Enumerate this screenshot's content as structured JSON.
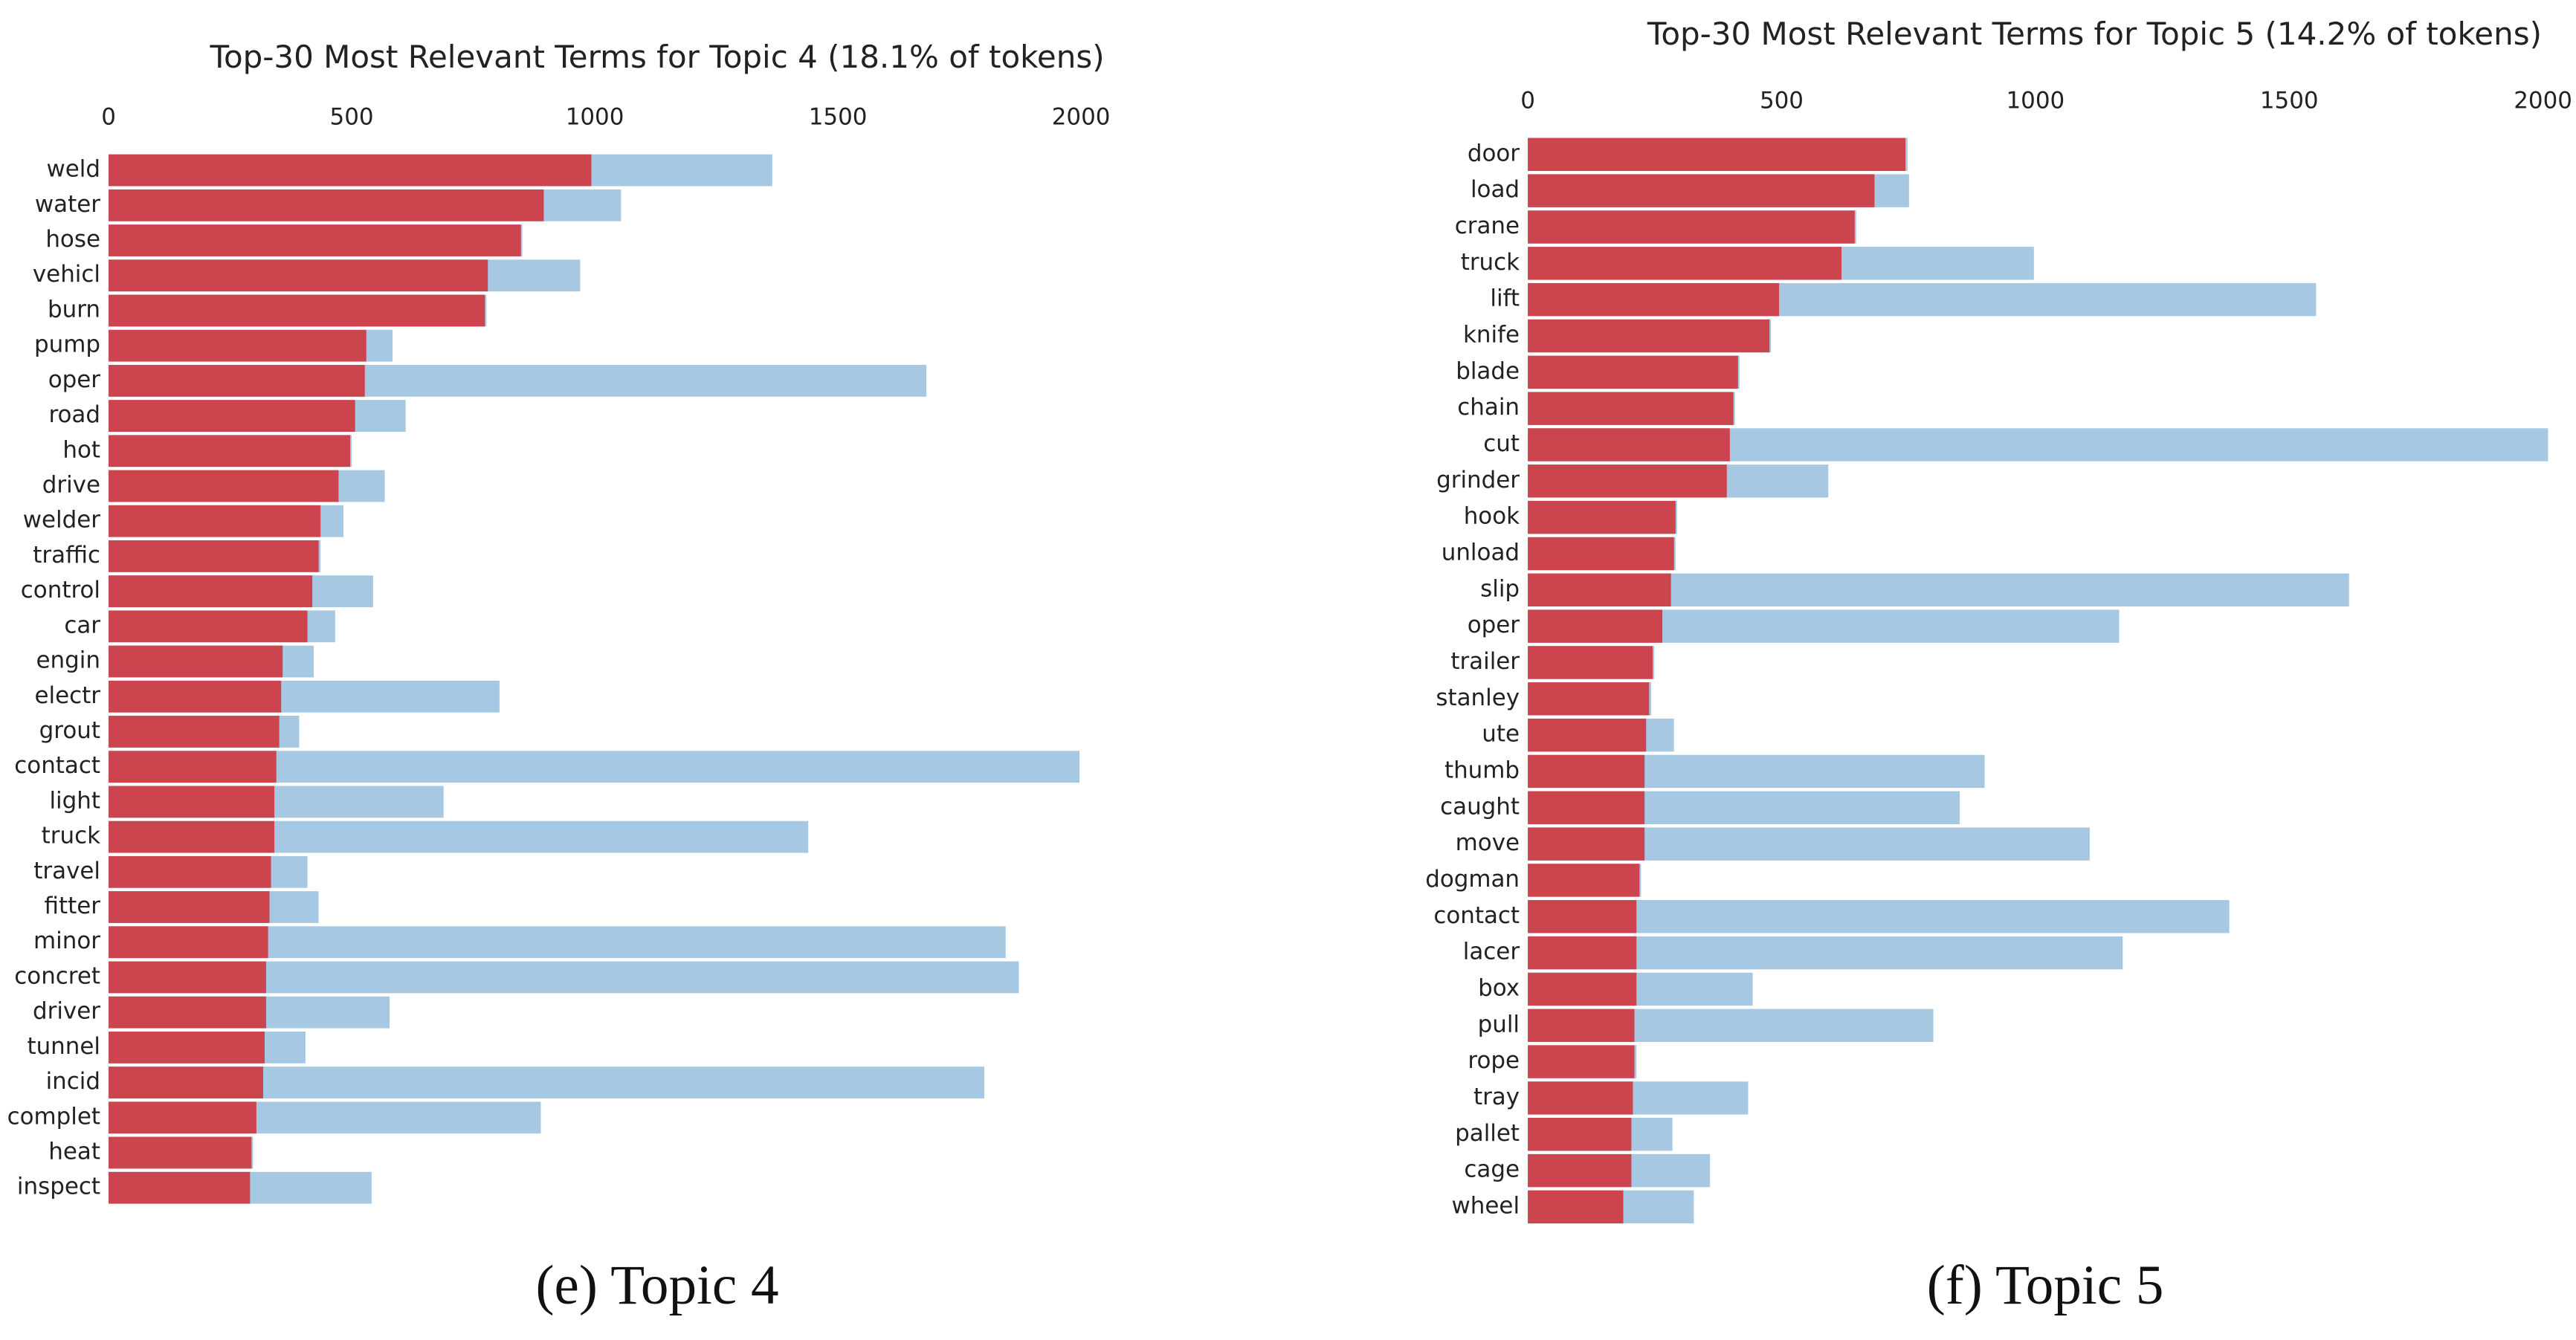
{
  "chart_data": [
    {
      "type": "bar",
      "orientation": "horizontal",
      "title": "Top-30 Most Relevant Terms for Topic 4 (18.1% of tokens)",
      "caption": "(e) Topic 4",
      "categories": [
        "weld",
        "water",
        "hose",
        "vehicl",
        "burn",
        "pump",
        "oper",
        "road",
        "hot",
        "drive",
        "welder",
        "traffic",
        "control",
        "car",
        "engin",
        "electr",
        "grout",
        "contact",
        "light",
        "truck",
        "travel",
        "fitter",
        "minor",
        "concret",
        "driver",
        "tunnel",
        "incid",
        "complet",
        "heat",
        "inspect"
      ],
      "series": [
        {
          "color": "#a6c8e2",
          "values": [
            1365,
            1054,
            851,
            970,
            777,
            584,
            1682,
            611,
            500,
            568,
            483,
            436,
            544,
            466,
            422,
            804,
            392,
            1997,
            689,
            1439,
            409,
            432,
            1845,
            1872,
            578,
            405,
            1801,
            889,
            297,
            541
          ]
        },
        {
          "color": "#cc444e",
          "values": [
            993,
            895,
            848,
            780,
            774,
            530,
            527,
            507,
            497,
            473,
            436,
            432,
            419,
            409,
            358,
            355,
            351,
            345,
            341,
            341,
            334,
            331,
            328,
            324,
            324,
            321,
            318,
            304,
            294,
            291
          ]
        }
      ],
      "xlim": [
        0,
        2000
      ],
      "xticks": [
        0,
        500,
        1000,
        1500,
        2000
      ]
    },
    {
      "type": "bar",
      "orientation": "horizontal",
      "title": "Top-30 Most Relevant Terms for Topic 5 (14.2% of tokens)",
      "caption": "(f) Topic 5",
      "categories": [
        "door",
        "load",
        "crane",
        "truck",
        "lift",
        "knife",
        "blade",
        "chain",
        "cut",
        "grinder",
        "hook",
        "unload",
        "slip",
        "oper",
        "trailer",
        "stanley",
        "ute",
        "thumb",
        "caught",
        "move",
        "dogman",
        "contact",
        "lacer",
        "box",
        "pull",
        "rope",
        "tray",
        "pallet",
        "cage",
        "wheel"
      ],
      "series": [
        {
          "color": "#a6c8e2",
          "values": [
            748,
            751,
            647,
            997,
            1553,
            479,
            417,
            408,
            2010,
            592,
            294,
            291,
            1618,
            1165,
            249,
            243,
            288,
            900,
            851,
            1107,
            223,
            1382,
            1172,
            443,
            799,
            214,
            434,
            285,
            359,
            327
          ]
        },
        {
          "color": "#cc444e",
          "values": [
            744,
            683,
            644,
            618,
            495,
            476,
            414,
            405,
            398,
            392,
            291,
            288,
            282,
            265,
            246,
            239,
            233,
            230,
            230,
            230,
            220,
            214,
            214,
            214,
            210,
            210,
            207,
            204,
            204,
            188
          ]
        }
      ],
      "xlim": [
        0,
        2000
      ],
      "xticks": [
        0,
        500,
        1000,
        1500,
        2000
      ]
    }
  ]
}
